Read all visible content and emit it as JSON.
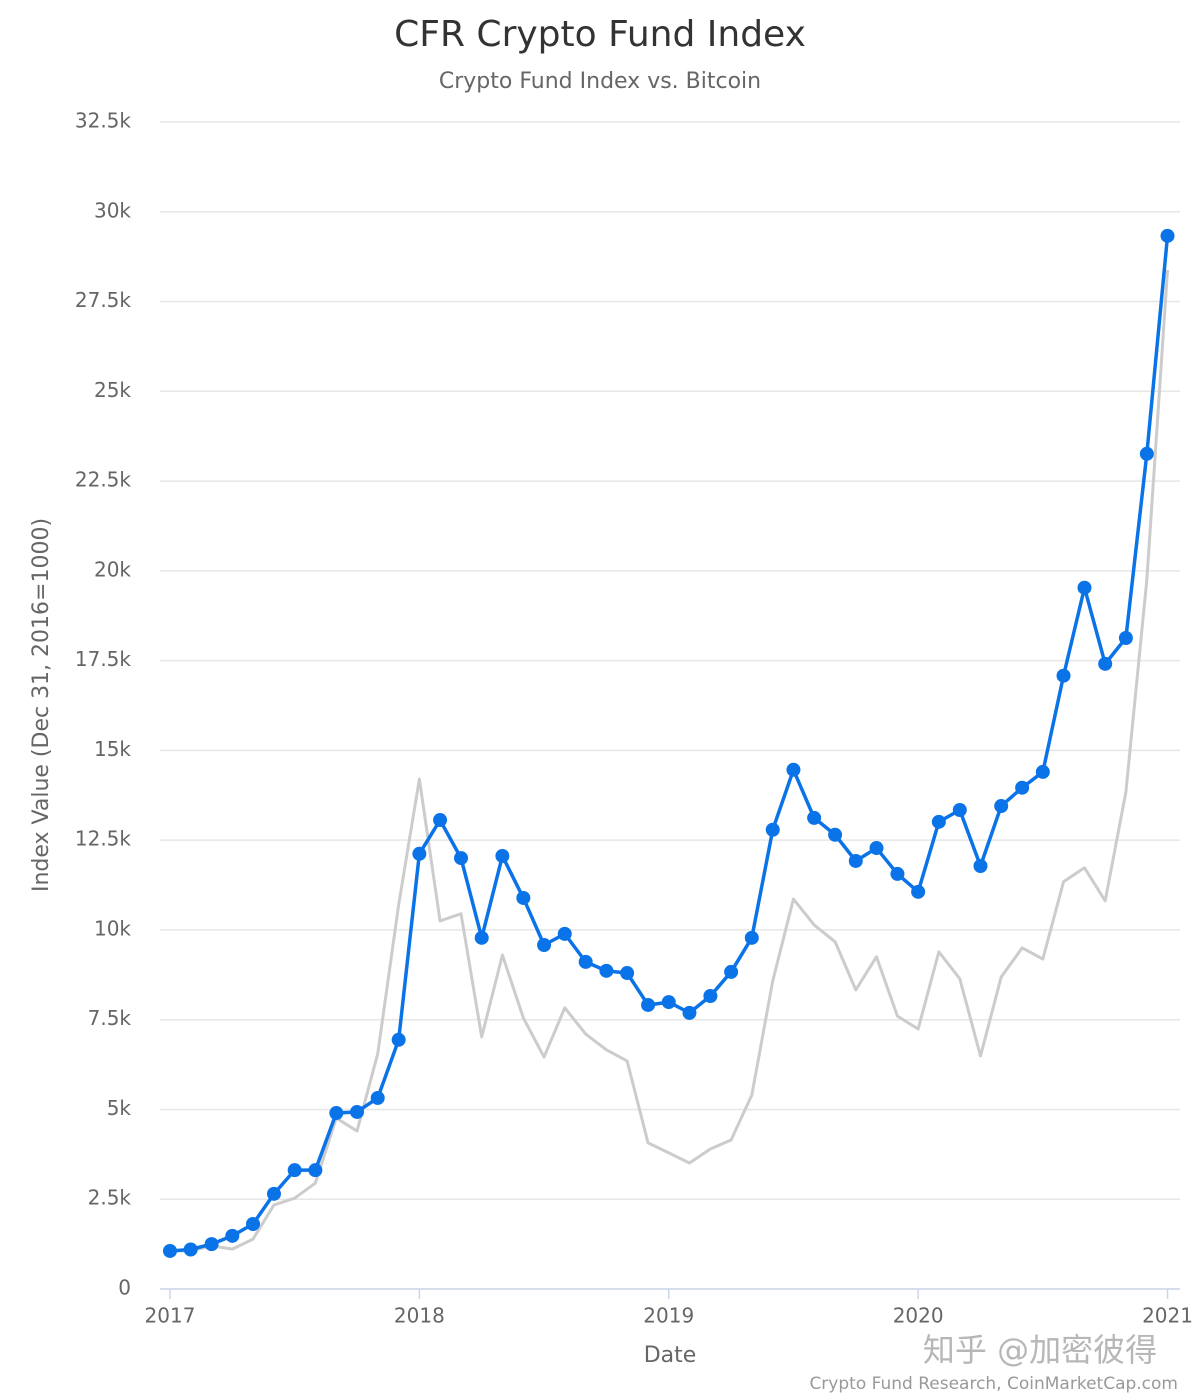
{
  "chart_data": {
    "type": "line",
    "title": "CFR Crypto Fund Index",
    "subtitle": "Crypto Fund Index vs. Bitcoin",
    "x_label": "Date",
    "y_label": "Index Value (Dec 31, 2016=1000)",
    "credit": "Crypto Fund Research, CoinMarketCap.com",
    "watermark": "知乎 @加密彼得",
    "x": [
      2017,
      2017.083,
      2017.167,
      2017.25,
      2017.333,
      2017.417,
      2017.5,
      2017.583,
      2017.667,
      2017.75,
      2017.833,
      2017.917,
      2018,
      2018.083,
      2018.167,
      2018.25,
      2018.333,
      2018.417,
      2018.5,
      2018.583,
      2018.667,
      2018.75,
      2018.833,
      2018.917,
      2019,
      2019.083,
      2019.167,
      2019.25,
      2019.333,
      2019.417,
      2019.5,
      2019.583,
      2019.667,
      2019.75,
      2019.833,
      2019.917,
      2020,
      2020.083,
      2020.167,
      2020.25,
      2020.333,
      2020.417,
      2020.5,
      2020.583,
      2020.667,
      2020.75,
      2020.833,
      2020.917,
      2021
    ],
    "series": [
      {
        "name": "Bitcoin",
        "color": "#cccccc",
        "markers": false,
        "values": [
          1060,
          1060,
          1200,
          1110,
          1390,
          2340,
          2530,
          2950,
          4760,
          4400,
          6550,
          10700,
          14200,
          10250,
          10450,
          7020,
          9300,
          7550,
          6460,
          7830,
          7100,
          6660,
          6350,
          4070,
          3790,
          3510,
          3900,
          4150,
          5400,
          8580,
          10860,
          10140,
          9670,
          8330,
          9250,
          7600,
          7240,
          9390,
          8640,
          6490,
          8690,
          9500,
          9190,
          11340,
          11730,
          10810,
          13840,
          19750,
          28380
        ]
      },
      {
        "name": "Crypto Fund Index",
        "color": "#0a73e8",
        "markers": true,
        "values": [
          1060,
          1100,
          1250,
          1480,
          1810,
          2650,
          3310,
          3310,
          4900,
          4930,
          5320,
          6940,
          12120,
          13060,
          12000,
          9780,
          12060,
          10890,
          9580,
          9890,
          9110,
          8860,
          8800,
          7910,
          7990,
          7690,
          8160,
          8830,
          9780,
          12790,
          14460,
          13120,
          12650,
          11920,
          12280,
          11560,
          11060,
          13010,
          13340,
          11780,
          13450,
          13960,
          14400,
          17080,
          19530,
          17410,
          18130,
          23260,
          29330
        ]
      }
    ],
    "xlim": [
      2016.96,
      2021.05
    ],
    "xticks": [
      2017,
      2018,
      2019,
      2020,
      2021
    ],
    "ylim": [
      0,
      32500
    ],
    "yticks": [
      0,
      {
        "value": 2500,
        "label": "2.5k"
      },
      {
        "value": 5000,
        "label": "5k"
      },
      {
        "value": 7500,
        "label": "7.5k"
      },
      {
        "value": 10000,
        "label": "10k"
      },
      {
        "value": 12500,
        "label": "12.5k"
      },
      {
        "value": 15000,
        "label": "15k"
      },
      {
        "value": 17500,
        "label": "17.5k"
      },
      {
        "value": 20000,
        "label": "20k"
      },
      {
        "value": 22500,
        "label": "22.5k"
      },
      {
        "value": 25000,
        "label": "25k"
      },
      {
        "value": 27500,
        "label": "27.5k"
      },
      {
        "value": 30000,
        "label": "30k"
      },
      {
        "value": 32500,
        "label": "32.5k"
      }
    ],
    "grid": true
  }
}
